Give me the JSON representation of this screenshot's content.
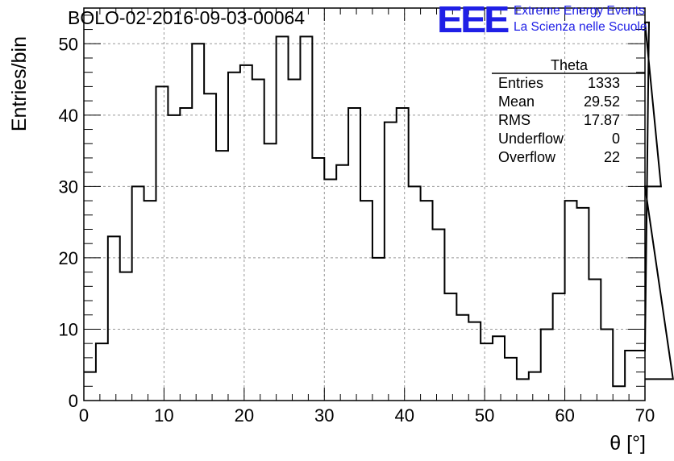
{
  "header": {
    "run_title": "BOLO-02-2016-09-03-00064",
    "logo_text": "EEE",
    "logo_line1": "Extreme Energy Events",
    "logo_line2": "La Scienza nelle Scuole"
  },
  "stats": {
    "title": "Theta",
    "rows": [
      {
        "label": "Entries",
        "value": "1333"
      },
      {
        "label": "Mean",
        "value": "29.52"
      },
      {
        "label": "RMS",
        "value": "17.87"
      },
      {
        "label": "Underflow",
        "value": "0"
      },
      {
        "label": "Overflow",
        "value": "22"
      }
    ]
  },
  "colors": {
    "logo": "#1f1fe6",
    "line": "#000000",
    "grid": "#999999"
  },
  "chart_data": {
    "type": "histogram",
    "xlabel": "θ [°]",
    "ylabel": "Entries/bin",
    "xlim": [
      0,
      70
    ],
    "ylim": [
      0,
      55
    ],
    "grid": true,
    "x_ticks": [
      0,
      10,
      20,
      30,
      40,
      50,
      60,
      70
    ],
    "y_ticks": [
      0,
      10,
      20,
      30,
      40,
      50
    ],
    "bin_width": 1.5,
    "bin_start": 0,
    "values": [
      4,
      8,
      23,
      18,
      30,
      28,
      44,
      40,
      41,
      50,
      43,
      35,
      46,
      47,
      45,
      36,
      51,
      45,
      51,
      34,
      31,
      33,
      41,
      28,
      20,
      39,
      41,
      30,
      28,
      24,
      15,
      12,
      11,
      8,
      9,
      6,
      3,
      4,
      10,
      15,
      28,
      27,
      17,
      10,
      2,
      7,
      7,
      53,
      30,
      3
    ]
  }
}
